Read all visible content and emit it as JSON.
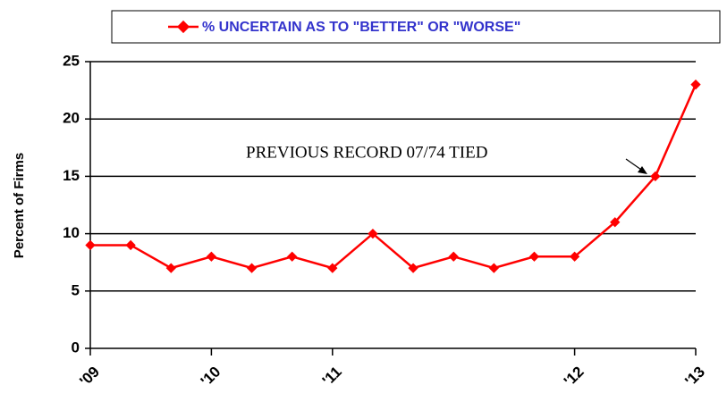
{
  "chart_data": {
    "type": "line",
    "legend_label": "% UNCERTAIN AS TO \"BETTER\" OR \"WORSE\"",
    "y_label": "Percent  of  Firms",
    "annotation": "PREVIOUS RECORD 07/74 TIED",
    "x": [
      0,
      1,
      2,
      3,
      4,
      5,
      6,
      7,
      8,
      9,
      10,
      11,
      12,
      13,
      14,
      15
    ],
    "series": [
      {
        "name": "% UNCERTAIN AS TO \"BETTER\" OR \"WORSE\"",
        "color": "#ff0000",
        "values": [
          9,
          9,
          7,
          8,
          7,
          8,
          7,
          10,
          7,
          8,
          7,
          8,
          8,
          11,
          15,
          23
        ]
      }
    ],
    "xlim": [
      0,
      15
    ],
    "xticks": [
      {
        "value": 0,
        "label": "'09"
      },
      {
        "value": 3,
        "label": "'10"
      },
      {
        "value": 6,
        "label": "'11"
      },
      {
        "value": 12,
        "label": "'12"
      },
      {
        "value": 15,
        "label": "'13"
      }
    ],
    "ylim": [
      0,
      25
    ],
    "yticks": [
      0,
      5,
      10,
      15,
      20,
      25
    ],
    "grid": true
  }
}
